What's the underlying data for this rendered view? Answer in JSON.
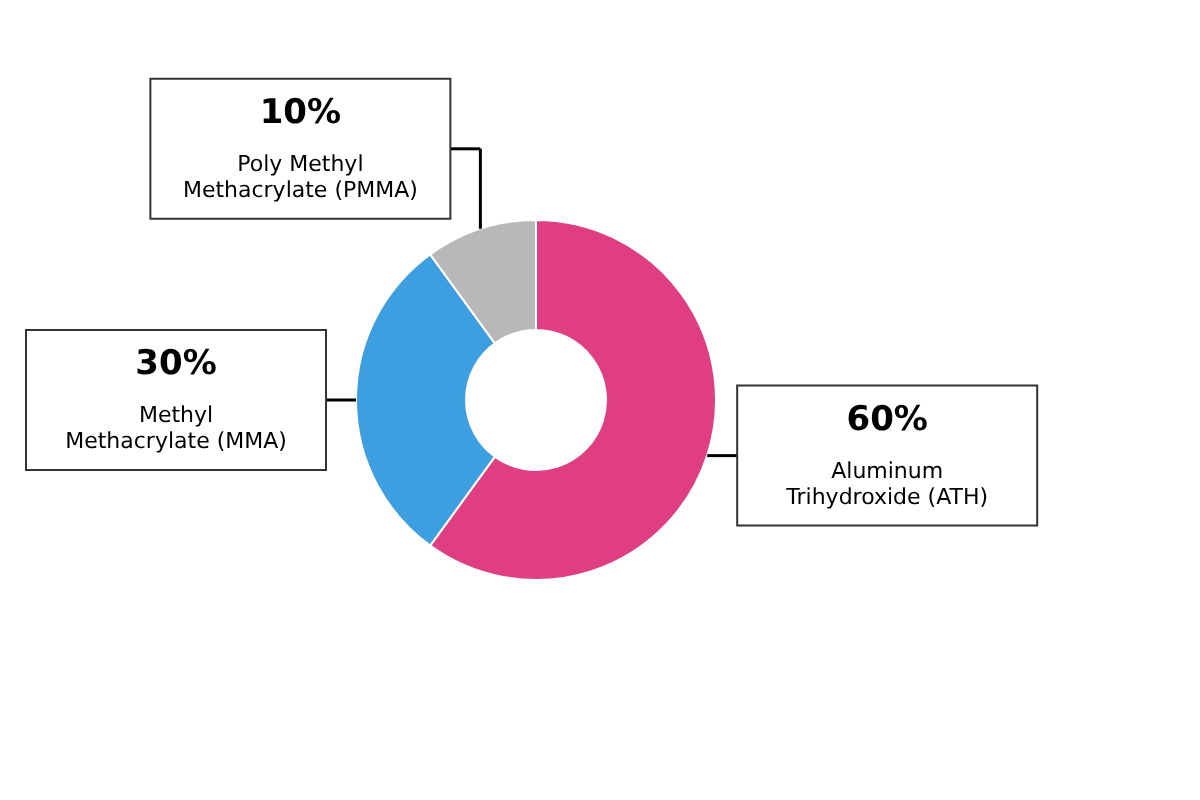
{
  "chart_data": {
    "type": "donut",
    "categories": [
      "Aluminum Trihydroxide (ATH)",
      "Methyl Methacrylate (MMA)",
      "Poly Methyl Methacrylate (PMMA)"
    ],
    "values": [
      60,
      30,
      10
    ],
    "colors": [
      "#e03e82",
      "#3d9fe0",
      "#b8b8b8"
    ],
    "value_labels": [
      "60%",
      "30%",
      "10%"
    ]
  }
}
